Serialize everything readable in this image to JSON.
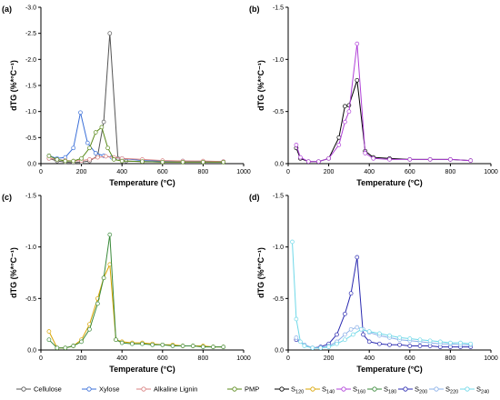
{
  "figure": {
    "legend_left": [
      {
        "name": "Cellulose",
        "color": "#555555"
      },
      {
        "name": "Xylose",
        "color": "#3a6fd8"
      },
      {
        "name": "Alkaline Lignin",
        "color": "#d98080"
      },
      {
        "name": "PMP",
        "color": "#5a8a1a"
      }
    ],
    "legend_right": [
      {
        "name": "S",
        "sub": "120",
        "color": "#000000"
      },
      {
        "name": "S",
        "sub": "140",
        "color": "#d9a400"
      },
      {
        "name": "S",
        "sub": "160",
        "color": "#b040d8"
      },
      {
        "name": "S",
        "sub": "180",
        "color": "#3a8a3a"
      },
      {
        "name": "S",
        "sub": "200",
        "color": "#2a2ab0"
      },
      {
        "name": "S",
        "sub": "220",
        "color": "#8ab0e8"
      },
      {
        "name": "S",
        "sub": "240",
        "color": "#6fd8e8"
      }
    ]
  },
  "chart_data": [
    {
      "type": "line",
      "panel_label": "(a)",
      "xlabel": "Temperature (°C)",
      "ylabel": "dTG (%*°C⁻¹)",
      "xlim": [
        0,
        1000
      ],
      "ylim": [
        0,
        -3.0
      ],
      "xticks": [
        "0",
        "200",
        "400",
        "600",
        "800",
        "1000"
      ],
      "yticks": [
        "0.0",
        "-0.5",
        "-1.0",
        "-1.5",
        "-2.0",
        "-2.5",
        "-3.0"
      ],
      "series": [
        {
          "name": "Cellulose",
          "color": "#555555",
          "x": [
            40,
            80,
            120,
            160,
            200,
            240,
            280,
            310,
            340,
            380,
            420,
            500,
            600,
            700,
            800,
            900
          ],
          "y": [
            -0.1,
            -0.05,
            -0.03,
            -0.02,
            -0.03,
            -0.05,
            -0.15,
            -0.8,
            -2.5,
            -0.1,
            -0.05,
            -0.04,
            -0.03,
            -0.03,
            -0.03,
            -0.03
          ]
        },
        {
          "name": "Xylose",
          "color": "#3a6fd8",
          "x": [
            40,
            80,
            120,
            160,
            195,
            230,
            270,
            310,
            350,
            400,
            500,
            600,
            700,
            800,
            900
          ],
          "y": [
            -0.15,
            -0.1,
            -0.12,
            -0.3,
            -0.98,
            -0.4,
            -0.2,
            -0.15,
            -0.12,
            -0.1,
            -0.06,
            -0.05,
            -0.05,
            -0.04,
            -0.04
          ]
        },
        {
          "name": "Alkaline Lignin",
          "color": "#d98080",
          "x": [
            40,
            80,
            120,
            160,
            200,
            240,
            280,
            320,
            360,
            400,
            500,
            600,
            700,
            800,
            900
          ],
          "y": [
            -0.1,
            -0.08,
            -0.06,
            -0.05,
            -0.06,
            -0.08,
            -0.12,
            -0.14,
            -0.12,
            -0.1,
            -0.08,
            -0.06,
            -0.05,
            -0.05,
            -0.04
          ]
        },
        {
          "name": "PMP",
          "color": "#5a8a1a",
          "x": [
            40,
            80,
            120,
            160,
            200,
            240,
            270,
            300,
            330,
            360,
            400,
            500,
            600,
            700,
            800,
            900
          ],
          "y": [
            -0.15,
            -0.08,
            -0.05,
            -0.05,
            -0.1,
            -0.3,
            -0.6,
            -0.7,
            -0.3,
            -0.08,
            -0.05,
            -0.04,
            -0.03,
            -0.03,
            -0.03,
            -0.03
          ]
        }
      ]
    },
    {
      "type": "line",
      "panel_label": "(b)",
      "xlabel": "Temperature (°C)",
      "ylabel": "dTG (%*°C⁻¹)",
      "xlim": [
        0,
        1000
      ],
      "ylim": [
        0,
        -1.5
      ],
      "xticks": [
        "0",
        "200",
        "400",
        "600",
        "800",
        "1000"
      ],
      "yticks": [
        "0.0",
        "-0.5",
        "-1.0",
        "-1.5"
      ],
      "series": [
        {
          "name": "S120",
          "color": "#000000",
          "x": [
            40,
            60,
            100,
            150,
            200,
            250,
            280,
            300,
            340,
            380,
            420,
            500,
            600,
            700,
            800,
            900
          ],
          "y": [
            -0.15,
            -0.05,
            -0.02,
            -0.02,
            -0.05,
            -0.25,
            -0.55,
            -0.56,
            -0.8,
            -0.12,
            -0.06,
            -0.05,
            -0.04,
            -0.04,
            -0.04,
            -0.03
          ]
        },
        {
          "name": "S160",
          "color": "#b040d8",
          "x": [
            40,
            60,
            100,
            150,
            200,
            250,
            280,
            300,
            340,
            380,
            420,
            500,
            600,
            700,
            800,
            900
          ],
          "y": [
            -0.18,
            -0.06,
            -0.02,
            -0.02,
            -0.05,
            -0.18,
            -0.4,
            -0.5,
            -1.15,
            -0.1,
            -0.05,
            -0.04,
            -0.04,
            -0.04,
            -0.04,
            -0.03
          ]
        }
      ]
    },
    {
      "type": "line",
      "panel_label": "(c)",
      "xlabel": "Temperature (°C)",
      "ylabel": "dTG (%*°C⁻¹)",
      "xlim": [
        0,
        1000
      ],
      "ylim": [
        0,
        -1.5
      ],
      "xticks": [
        "0",
        "200",
        "400",
        "600",
        "800",
        "1000"
      ],
      "yticks": [
        "0.0",
        "-0.5",
        "-1.0",
        "-1.5"
      ],
      "series": [
        {
          "name": "S140",
          "color": "#d9a400",
          "x": [
            40,
            80,
            120,
            160,
            200,
            240,
            280,
            310,
            340,
            370,
            400,
            450,
            500,
            550,
            600,
            650,
            700,
            750,
            800,
            850,
            900
          ],
          "y": [
            -0.18,
            -0.02,
            -0.02,
            -0.04,
            -0.1,
            -0.25,
            -0.5,
            -0.7,
            -0.83,
            -0.1,
            -0.08,
            -0.07,
            -0.07,
            -0.06,
            -0.05,
            -0.05,
            -0.04,
            -0.04,
            -0.04,
            -0.03,
            -0.03
          ]
        },
        {
          "name": "S180",
          "color": "#3a8a3a",
          "x": [
            40,
            80,
            120,
            160,
            200,
            240,
            280,
            310,
            340,
            370,
            400,
            450,
            500,
            550,
            600,
            650,
            700,
            750,
            800,
            850,
            900
          ],
          "y": [
            -0.1,
            -0.02,
            -0.02,
            -0.04,
            -0.08,
            -0.2,
            -0.45,
            -0.7,
            -1.12,
            -0.1,
            -0.07,
            -0.06,
            -0.06,
            -0.05,
            -0.05,
            -0.04,
            -0.04,
            -0.04,
            -0.03,
            -0.03,
            -0.03
          ]
        }
      ]
    },
    {
      "type": "line",
      "panel_label": "(d)",
      "xlabel": "Temperature (°C)",
      "ylabel": "dTG (%*°C⁻¹)",
      "xlim": [
        0,
        1000
      ],
      "ylim": [
        0,
        -1.5
      ],
      "xticks": [
        "0",
        "200",
        "400",
        "600",
        "800",
        "1000"
      ],
      "yticks": [
        "0.0",
        "-0.5",
        "-1.0",
        "-1.5"
      ],
      "series": [
        {
          "name": "S200",
          "color": "#2a2ab0",
          "x": [
            40,
            80,
            120,
            160,
            200,
            240,
            280,
            310,
            340,
            370,
            400,
            450,
            500,
            550,
            600,
            650,
            700,
            750,
            800,
            850,
            900
          ],
          "y": [
            -0.1,
            -0.05,
            -0.02,
            -0.03,
            -0.06,
            -0.15,
            -0.35,
            -0.55,
            -0.9,
            -0.15,
            -0.08,
            -0.06,
            -0.05,
            -0.05,
            -0.04,
            -0.04,
            -0.04,
            -0.03,
            -0.03,
            -0.03,
            -0.03
          ]
        },
        {
          "name": "S220",
          "color": "#8ab0e8",
          "x": [
            40,
            80,
            120,
            160,
            200,
            240,
            280,
            310,
            340,
            370,
            400,
            450,
            500,
            550,
            600,
            650,
            700,
            750,
            800,
            850,
            900
          ],
          "y": [
            -0.12,
            -0.05,
            -0.02,
            -0.02,
            -0.04,
            -0.08,
            -0.15,
            -0.2,
            -0.22,
            -0.2,
            -0.17,
            -0.14,
            -0.12,
            -0.1,
            -0.09,
            -0.08,
            -0.07,
            -0.06,
            -0.06,
            -0.05,
            -0.05
          ]
        },
        {
          "name": "S240",
          "color": "#6fd8e8",
          "x": [
            20,
            40,
            60,
            80,
            120,
            160,
            200,
            240,
            280,
            320,
            360,
            400,
            450,
            500,
            550,
            600,
            650,
            700,
            750,
            800,
            850,
            900
          ],
          "y": [
            -1.05,
            -0.3,
            -0.08,
            -0.04,
            -0.02,
            -0.02,
            -0.03,
            -0.06,
            -0.1,
            -0.15,
            -0.2,
            -0.18,
            -0.16,
            -0.14,
            -0.12,
            -0.11,
            -0.1,
            -0.09,
            -0.08,
            -0.07,
            -0.07,
            -0.06
          ]
        }
      ]
    }
  ]
}
